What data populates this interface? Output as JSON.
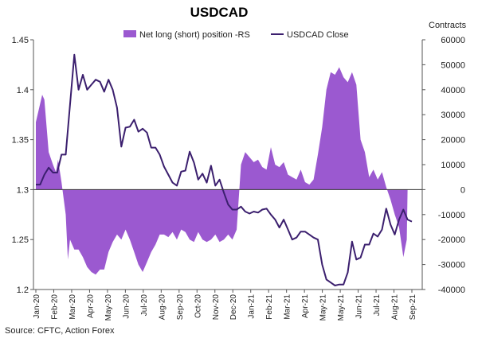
{
  "chart_data": {
    "type": "area+line",
    "title": "USDCAD",
    "right_axis_label": "Contracts",
    "source": "Source: CFTC, Action Forex",
    "colors": {
      "area": "#9b59d0",
      "line": "#3b1f6e",
      "axis": "#555555"
    },
    "legend": {
      "placement": "top",
      "area_label": "Net long (short) position -RS",
      "line_label": "USDCAD Close"
    },
    "left_axis": {
      "min": 1.2,
      "max": 1.45,
      "ticks": [
        "1.45",
        "1.4",
        "1.35",
        "1.3",
        "1.25",
        "1.2"
      ]
    },
    "right_axis": {
      "min": -40000,
      "max": 60000,
      "ticks": [
        "60000",
        "50000",
        "40000",
        "30000",
        "20000",
        "10000",
        "0",
        "-10000",
        "-20000",
        "-30000",
        "-40000"
      ]
    },
    "x_labels": [
      "Jan-20",
      "Feb-20",
      "Mar-20",
      "Apr-20",
      "May-20",
      "Jun-20",
      "Jul-20",
      "Aug-20",
      "Sep-20",
      "Oct-20",
      "Nov-20",
      "Dec-20",
      "Jan-21",
      "Feb-21",
      "Mar-21",
      "Apr-21",
      "May-21",
      "May-21",
      "Jun-21",
      "Jul-21",
      "Aug-21",
      "Sep-21"
    ],
    "net_position": [
      [
        0,
        27000
      ],
      [
        1.5,
        38000
      ],
      [
        2,
        36000
      ],
      [
        3,
        15000
      ],
      [
        4,
        10000
      ],
      [
        4.7,
        7000
      ],
      [
        5.2,
        12000
      ],
      [
        6,
        3000
      ],
      [
        7,
        -10000
      ],
      [
        7.5,
        -28000
      ],
      [
        8,
        -20000
      ],
      [
        9,
        -24000
      ],
      [
        10,
        -24000
      ],
      [
        11,
        -27000
      ],
      [
        12,
        -31000
      ],
      [
        13,
        -33000
      ],
      [
        14,
        -34000
      ],
      [
        15,
        -32000
      ],
      [
        16,
        -32000
      ],
      [
        17,
        -25000
      ],
      [
        18,
        -21000
      ],
      [
        19,
        -18000
      ],
      [
        20,
        -20000
      ],
      [
        21,
        -16000
      ],
      [
        22,
        -20000
      ],
      [
        23,
        -25000
      ],
      [
        24,
        -30000
      ],
      [
        25,
        -33000
      ],
      [
        26,
        -29000
      ],
      [
        27,
        -25000
      ],
      [
        28,
        -22000
      ],
      [
        29,
        -18000
      ],
      [
        30,
        -18000
      ],
      [
        31,
        -19000
      ],
      [
        32,
        -17000
      ],
      [
        33,
        -20000
      ],
      [
        34,
        -16000
      ],
      [
        35,
        -17000
      ],
      [
        36,
        -20000
      ],
      [
        37,
        -21000
      ],
      [
        38,
        -17000
      ],
      [
        39,
        -20000
      ],
      [
        40,
        -21000
      ],
      [
        41,
        -20000
      ],
      [
        42,
        -18000
      ],
      [
        43,
        -21000
      ],
      [
        44,
        -20000
      ],
      [
        45,
        -18000
      ],
      [
        46,
        -20000
      ],
      [
        47,
        -16000
      ],
      [
        48,
        10000
      ],
      [
        49,
        15000
      ],
      [
        50,
        13000
      ],
      [
        51,
        11000
      ],
      [
        52,
        12000
      ],
      [
        53,
        9000
      ],
      [
        54,
        8000
      ],
      [
        55,
        17000
      ],
      [
        56,
        10000
      ],
      [
        57,
        9000
      ],
      [
        58,
        11000
      ],
      [
        59,
        6000
      ],
      [
        60,
        5000
      ],
      [
        61,
        4000
      ],
      [
        62,
        8000
      ],
      [
        63,
        3000
      ],
      [
        64,
        2000
      ],
      [
        65,
        4000
      ],
      [
        66,
        14000
      ],
      [
        67,
        25000
      ],
      [
        68,
        40000
      ],
      [
        69,
        47000
      ],
      [
        70,
        46000
      ],
      [
        71,
        49000
      ],
      [
        72,
        45000
      ],
      [
        73,
        43000
      ],
      [
        74,
        47000
      ],
      [
        75,
        42000
      ],
      [
        76,
        20000
      ],
      [
        77,
        15000
      ],
      [
        78,
        5000
      ],
      [
        79,
        8000
      ],
      [
        80,
        4000
      ],
      [
        81,
        7000
      ],
      [
        82,
        1000
      ],
      [
        83,
        -4000
      ],
      [
        84,
        -10000
      ],
      [
        85,
        -15000
      ],
      [
        86,
        -27000
      ],
      [
        86.8,
        -20000
      ],
      [
        87,
        0
      ]
    ],
    "usdcad_close": [
      [
        0,
        1.305
      ],
      [
        1,
        1.305
      ],
      [
        2,
        1.315
      ],
      [
        3,
        1.322
      ],
      [
        4,
        1.317
      ],
      [
        5,
        1.317
      ],
      [
        6,
        1.335
      ],
      [
        7,
        1.335
      ],
      [
        8,
        1.385
      ],
      [
        9,
        1.435
      ],
      [
        10,
        1.4
      ],
      [
        11,
        1.415
      ],
      [
        12,
        1.4
      ],
      [
        13,
        1.405
      ],
      [
        14,
        1.41
      ],
      [
        15,
        1.408
      ],
      [
        16,
        1.398
      ],
      [
        17,
        1.41
      ],
      [
        18,
        1.4
      ],
      [
        19,
        1.382
      ],
      [
        20,
        1.343
      ],
      [
        21,
        1.362
      ],
      [
        22,
        1.363
      ],
      [
        23,
        1.37
      ],
      [
        24,
        1.358
      ],
      [
        25,
        1.361
      ],
      [
        26,
        1.357
      ],
      [
        27,
        1.342
      ],
      [
        28,
        1.342
      ],
      [
        29,
        1.335
      ],
      [
        30,
        1.323
      ],
      [
        31,
        1.315
      ],
      [
        32,
        1.307
      ],
      [
        33,
        1.304
      ],
      [
        34,
        1.318
      ],
      [
        35,
        1.319
      ],
      [
        36,
        1.338
      ],
      [
        37,
        1.327
      ],
      [
        38,
        1.31
      ],
      [
        39,
        1.316
      ],
      [
        40,
        1.307
      ],
      [
        41,
        1.324
      ],
      [
        42,
        1.304
      ],
      [
        43,
        1.31
      ],
      [
        44,
        1.297
      ],
      [
        45,
        1.285
      ],
      [
        46,
        1.28
      ],
      [
        47,
        1.28
      ],
      [
        48,
        1.283
      ],
      [
        49,
        1.278
      ],
      [
        50,
        1.276
      ],
      [
        51,
        1.278
      ],
      [
        52,
        1.277
      ],
      [
        53,
        1.28
      ],
      [
        54,
        1.281
      ],
      [
        55,
        1.275
      ],
      [
        56,
        1.27
      ],
      [
        57,
        1.262
      ],
      [
        58,
        1.27
      ],
      [
        59,
        1.26
      ],
      [
        60,
        1.25
      ],
      [
        61,
        1.252
      ],
      [
        62,
        1.258
      ],
      [
        63,
        1.258
      ],
      [
        64,
        1.255
      ],
      [
        65,
        1.252
      ],
      [
        66,
        1.25
      ],
      [
        67,
        1.225
      ],
      [
        68,
        1.21
      ],
      [
        69,
        1.207
      ],
      [
        70,
        1.204
      ],
      [
        71,
        1.205
      ],
      [
        72,
        1.205
      ],
      [
        73,
        1.217
      ],
      [
        74,
        1.248
      ],
      [
        75,
        1.23
      ],
      [
        76,
        1.232
      ],
      [
        77,
        1.245
      ],
      [
        78,
        1.245
      ],
      [
        79,
        1.256
      ],
      [
        80,
        1.253
      ],
      [
        81,
        1.26
      ],
      [
        82,
        1.281
      ],
      [
        83,
        1.265
      ],
      [
        84,
        1.255
      ],
      [
        85,
        1.27
      ],
      [
        86,
        1.28
      ],
      [
        87,
        1.27
      ],
      [
        88,
        1.268
      ]
    ]
  }
}
